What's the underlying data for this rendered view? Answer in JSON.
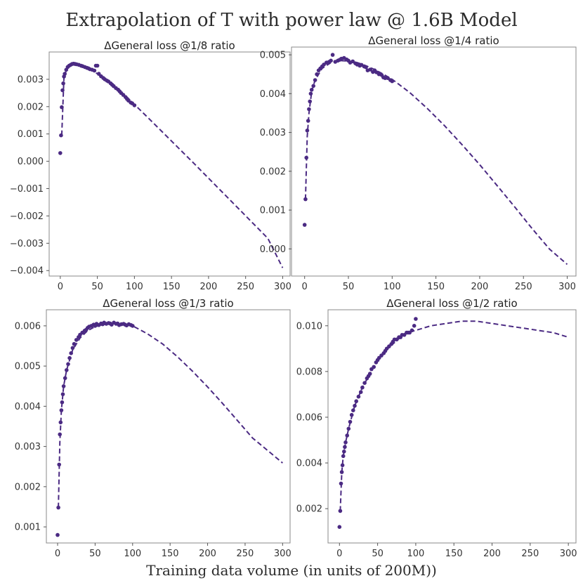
{
  "suptitle": "Extrapolation of T with power law @ 1.6B Model",
  "shared_xlabel": "Training  data volume (in units of 200M))",
  "colors": {
    "series": "#4b2a83",
    "axes": "#888888",
    "background": "#ffffff"
  },
  "chart_data": [
    {
      "type": "scatter",
      "title": "ΔGeneral loss @1/8 ratio",
      "xlim": [
        -15,
        310
      ],
      "ylim": [
        -0.0042,
        0.004
      ],
      "xticks": [
        0,
        50,
        100,
        150,
        200,
        250,
        300
      ],
      "xtick_labels": [
        "0",
        "50",
        "100",
        "150",
        "200",
        "250",
        "300"
      ],
      "yticks": [
        -0.004,
        -0.003,
        -0.002,
        -0.001,
        0.0,
        0.001,
        0.002,
        0.003
      ],
      "ytick_labels": [
        "−0.004",
        "−0.003",
        "−0.002",
        "−0.001",
        "0.000",
        "0.001",
        "0.002",
        "0.003"
      ],
      "scatter": {
        "x": [
          0,
          1,
          2,
          3,
          4,
          5,
          6,
          8,
          10,
          12,
          14,
          16,
          18,
          20,
          22,
          25,
          28,
          30,
          33,
          36,
          38,
          40,
          43,
          46,
          48,
          50,
          52,
          55,
          58,
          60,
          63,
          65,
          68,
          70,
          72,
          75,
          78,
          80,
          82,
          85,
          88,
          90,
          92,
          95,
          97,
          100
        ],
        "y": [
          0.0003,
          0.00095,
          0.00198,
          0.0026,
          0.00285,
          0.0031,
          0.0032,
          0.00335,
          0.00345,
          0.0035,
          0.00353,
          0.00356,
          0.00357,
          0.00356,
          0.00355,
          0.00353,
          0.0035,
          0.00348,
          0.00345,
          0.00342,
          0.0034,
          0.00337,
          0.00335,
          0.00332,
          0.0035,
          0.0035,
          0.0032,
          0.00311,
          0.00305,
          0.003,
          0.00295,
          0.00292,
          0.00285,
          0.0028,
          0.00275,
          0.00268,
          0.00262,
          0.00256,
          0.0025,
          0.00243,
          0.00235,
          0.00228,
          0.00222,
          0.00215,
          0.00212,
          0.00205
        ]
      },
      "fit": {
        "style": "dashed",
        "x": [
          2,
          5,
          10,
          15,
          20,
          30,
          40,
          50,
          60,
          70,
          80,
          90,
          100,
          120,
          140,
          160,
          180,
          200,
          220,
          240,
          260,
          280,
          300
        ],
        "y": [
          0.00095,
          0.0031,
          0.00345,
          0.00355,
          0.00356,
          0.0035,
          0.0034,
          0.0032,
          0.00301,
          0.0028,
          0.00258,
          0.00235,
          0.00208,
          0.00155,
          0.00101,
          0.00047,
          -7e-05,
          -0.00062,
          -0.00117,
          -0.00172,
          -0.00227,
          -0.00282,
          -0.0039
        ]
      }
    },
    {
      "type": "scatter",
      "title": "ΔGeneral loss @1/4 ratio",
      "xlim": [
        -15,
        310
      ],
      "ylim": [
        -0.0007,
        0.0052
      ],
      "xticks": [
        0,
        50,
        100,
        150,
        200,
        250,
        300
      ],
      "xtick_labels": [
        "0",
        "50",
        "100",
        "150",
        "200",
        "250",
        "300"
      ],
      "yticks": [
        0.0,
        0.001,
        0.002,
        0.003,
        0.004,
        0.005
      ],
      "ytick_labels": [
        "0.000",
        "0.001",
        "0.002",
        "0.003",
        "0.004",
        "0.005"
      ],
      "scatter": {
        "x": [
          0,
          1,
          2,
          3,
          4,
          5,
          6,
          7,
          8,
          10,
          12,
          14,
          16,
          18,
          20,
          22,
          25,
          28,
          30,
          32,
          35,
          38,
          40,
          42,
          45,
          48,
          50,
          52,
          55,
          58,
          60,
          63,
          65,
          68,
          70,
          72,
          75,
          78,
          80,
          82,
          85,
          88,
          90,
          92,
          95,
          98,
          100
        ],
        "y": [
          0.00062,
          0.00128,
          0.00235,
          0.00305,
          0.0033,
          0.0036,
          0.0038,
          0.004,
          0.0041,
          0.0042,
          0.00435,
          0.0045,
          0.0046,
          0.00465,
          0.0047,
          0.00475,
          0.0048,
          0.00482,
          0.00485,
          0.005,
          0.00482,
          0.00485,
          0.00487,
          0.0049,
          0.00492,
          0.00488,
          0.00485,
          0.0048,
          0.00483,
          0.00478,
          0.00475,
          0.00472,
          0.00474,
          0.0047,
          0.00468,
          0.0046,
          0.00462,
          0.00456,
          0.0046,
          0.00455,
          0.0045,
          0.00448,
          0.00442,
          0.0044,
          0.0044,
          0.00435,
          0.00432
        ]
      },
      "fit": {
        "style": "dashed",
        "x": [
          1,
          3,
          5,
          8,
          12,
          20,
          30,
          40,
          50,
          60,
          70,
          80,
          90,
          100,
          120,
          140,
          160,
          180,
          200,
          220,
          240,
          260,
          280,
          300
        ],
        "y": [
          0.00128,
          0.0029,
          0.0035,
          0.00405,
          0.00435,
          0.00465,
          0.0048,
          0.00485,
          0.00484,
          0.0048,
          0.00472,
          0.00462,
          0.0045,
          0.00437,
          0.00403,
          0.00362,
          0.00317,
          0.00268,
          0.00217,
          0.00163,
          0.00108,
          0.00052,
          -1e-05,
          -0.0004
        ]
      }
    },
    {
      "type": "scatter",
      "title": "ΔGeneral loss @1/3 ratio",
      "xlim": [
        -15,
        310
      ],
      "ylim": [
        0.0006,
        0.0064
      ],
      "xticks": [
        0,
        50,
        100,
        150,
        200,
        250,
        300
      ],
      "xtick_labels": [
        "0",
        "50",
        "100",
        "150",
        "200",
        "250",
        "300"
      ],
      "yticks": [
        0.001,
        0.002,
        0.003,
        0.004,
        0.005,
        0.006
      ],
      "ytick_labels": [
        "0.001",
        "0.002",
        "0.003",
        "0.004",
        "0.005",
        "0.006"
      ],
      "scatter": {
        "x": [
          0,
          1,
          2,
          3,
          4,
          5,
          6,
          7,
          8,
          10,
          12,
          14,
          16,
          18,
          20,
          22,
          25,
          28,
          30,
          33,
          36,
          38,
          40,
          42,
          45,
          48,
          50,
          52,
          55,
          58,
          60,
          62,
          65,
          68,
          70,
          72,
          75,
          78,
          80,
          82,
          85,
          88,
          90,
          92,
          95,
          98,
          100
        ],
        "y": [
          0.0008,
          0.00148,
          0.00255,
          0.0033,
          0.0036,
          0.0039,
          0.0041,
          0.0043,
          0.0045,
          0.0047,
          0.0049,
          0.00505,
          0.0052,
          0.00532,
          0.00545,
          0.00555,
          0.00565,
          0.00572,
          0.00578,
          0.00583,
          0.00588,
          0.0059,
          0.00595,
          0.00598,
          0.006,
          0.00603,
          0.006,
          0.00605,
          0.00602,
          0.00606,
          0.00604,
          0.00608,
          0.00605,
          0.00607,
          0.00606,
          0.00603,
          0.00608,
          0.00605,
          0.00606,
          0.00602,
          0.00604,
          0.00605,
          0.00603,
          0.00601,
          0.00604,
          0.00602,
          0.006
        ]
      },
      "fit": {
        "style": "dashed",
        "x": [
          1,
          3,
          5,
          8,
          12,
          20,
          30,
          40,
          50,
          60,
          70,
          80,
          90,
          100,
          120,
          140,
          160,
          180,
          200,
          220,
          240,
          260,
          280,
          300
        ],
        "y": [
          0.00148,
          0.0031,
          0.0039,
          0.0045,
          0.0049,
          0.0054,
          0.0057,
          0.00588,
          0.00598,
          0.00603,
          0.00605,
          0.00605,
          0.00603,
          0.006,
          0.0058,
          0.00555,
          0.00523,
          0.00487,
          0.00448,
          0.00407,
          0.00364,
          0.00321,
          0.0029,
          0.00259
        ]
      }
    },
    {
      "type": "scatter",
      "title": "ΔGeneral loss @1/2 ratio",
      "xlim": [
        -15,
        310
      ],
      "ylim": [
        0.0005,
        0.0107
      ],
      "xticks": [
        0,
        50,
        100,
        150,
        200,
        250,
        300
      ],
      "xtick_labels": [
        "0",
        "50",
        "100",
        "150",
        "200",
        "250",
        "300"
      ],
      "yticks": [
        0.002,
        0.004,
        0.006,
        0.008,
        0.01
      ],
      "ytick_labels": [
        "0.002",
        "0.004",
        "0.006",
        "0.008",
        "0.010"
      ],
      "scatter": {
        "x": [
          0,
          1,
          2,
          3,
          4,
          5,
          6,
          7,
          8,
          10,
          12,
          14,
          16,
          18,
          20,
          22,
          25,
          28,
          30,
          33,
          36,
          38,
          40,
          42,
          45,
          48,
          50,
          52,
          55,
          58,
          60,
          62,
          65,
          68,
          70,
          72,
          75,
          78,
          80,
          82,
          85,
          88,
          90,
          92,
          95,
          98,
          100
        ],
        "y": [
          0.0012,
          0.0019,
          0.0031,
          0.0036,
          0.0039,
          0.0043,
          0.0045,
          0.0047,
          0.0049,
          0.0052,
          0.0055,
          0.0058,
          0.0061,
          0.0063,
          0.0065,
          0.0067,
          0.0069,
          0.0071,
          0.0073,
          0.0075,
          0.0077,
          0.0078,
          0.0079,
          0.0081,
          0.0082,
          0.0084,
          0.0085,
          0.0086,
          0.0087,
          0.0088,
          0.0089,
          0.009,
          0.0091,
          0.0092,
          0.0093,
          0.0094,
          0.0094,
          0.0095,
          0.0095,
          0.0096,
          0.0096,
          0.0097,
          0.0097,
          0.0097,
          0.0098,
          0.01,
          0.0103
        ]
      },
      "fit": {
        "style": "dashed",
        "x": [
          1,
          3,
          5,
          8,
          12,
          20,
          30,
          40,
          50,
          60,
          70,
          80,
          90,
          100,
          120,
          140,
          160,
          180,
          200,
          220,
          240,
          260,
          280,
          300
        ],
        "y": [
          0.0019,
          0.0036,
          0.0043,
          0.0049,
          0.0055,
          0.0065,
          0.0073,
          0.0079,
          0.0085,
          0.0089,
          0.0092,
          0.0095,
          0.0097,
          0.0098,
          0.01,
          0.0101,
          0.0102,
          0.0102,
          0.0101,
          0.01,
          0.0099,
          0.0098,
          0.0097,
          0.0095
        ]
      }
    }
  ]
}
